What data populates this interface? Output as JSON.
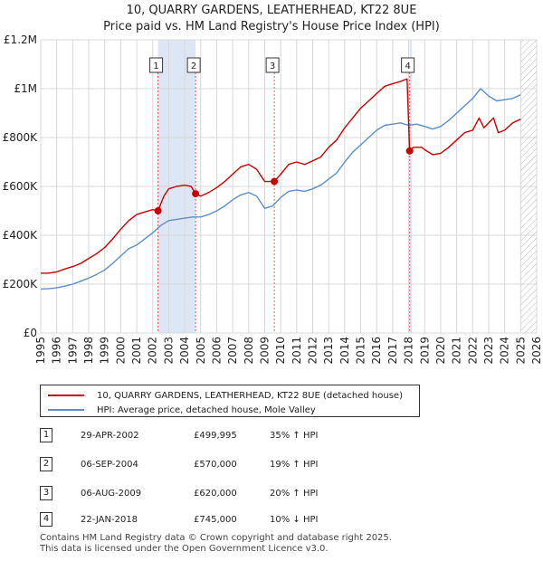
{
  "title_line1": "10, QUARRY GARDENS, LEATHERHEAD, KT22 8UE",
  "title_line2": "Price paid vs. HM Land Registry's House Price Index (HPI)",
  "chart_data": {
    "type": "line",
    "title": "10, QUARRY GARDENS, LEATHERHEAD, KT22 8UE — Price paid vs. HM Land Registry's House Price Index (HPI)",
    "xlabel": "",
    "ylabel": "",
    "xlim": [
      1995,
      2026
    ],
    "ylim": [
      0,
      1200000
    ],
    "grid": true,
    "x_ticks": [
      "1995",
      "1996",
      "1997",
      "1998",
      "1999",
      "2000",
      "2001",
      "2002",
      "2003",
      "2004",
      "2005",
      "2006",
      "2007",
      "2008",
      "2009",
      "2010",
      "2011",
      "2012",
      "2013",
      "2014",
      "2015",
      "2016",
      "2017",
      "2018",
      "2019",
      "2020",
      "2021",
      "2022",
      "2023",
      "2024",
      "2025",
      "2026"
    ],
    "y_ticks": [
      {
        "value": 0,
        "label": "£0"
      },
      {
        "value": 200000,
        "label": "£200K"
      },
      {
        "value": 400000,
        "label": "£400K"
      },
      {
        "value": 600000,
        "label": "£600K"
      },
      {
        "value": 800000,
        "label": "£800K"
      },
      {
        "value": 1000000,
        "label": "£1M"
      },
      {
        "value": 1200000,
        "label": "£1.2M"
      }
    ],
    "shaded_periods": [
      [
        2002.33,
        2004.68
      ],
      [
        2018.06,
        2018.2
      ]
    ],
    "future_hatch_start": 2025.0,
    "series": [
      {
        "name": "10, QUARRY GARDENS, LEATHERHEAD, KT22 8UE (detached house)",
        "color": "#cc0000",
        "x": [
          1995.0,
          1995.5,
          1996.0,
          1996.5,
          1997.0,
          1997.5,
          1998.0,
          1998.5,
          1999.0,
          1999.5,
          2000.0,
          2000.5,
          2001.0,
          2001.5,
          2002.0,
          2002.33,
          2002.7,
          2003.0,
          2003.5,
          2004.0,
          2004.4,
          2004.68,
          2005.0,
          2005.5,
          2006.0,
          2006.5,
          2007.0,
          2007.5,
          2008.0,
          2008.5,
          2009.0,
          2009.6,
          2010.0,
          2010.5,
          2011.0,
          2011.5,
          2012.0,
          2012.5,
          2013.0,
          2013.5,
          2014.0,
          2014.5,
          2015.0,
          2015.5,
          2016.0,
          2016.5,
          2017.0,
          2017.5,
          2017.9,
          2018.06,
          2018.3,
          2018.8,
          2019.0,
          2019.5,
          2020.0,
          2020.5,
          2021.0,
          2021.5,
          2022.0,
          2022.4,
          2022.7,
          2023.0,
          2023.3,
          2023.6,
          2024.0,
          2024.5,
          2025.0
        ],
        "y": [
          245000,
          245000,
          250000,
          262000,
          272000,
          285000,
          305000,
          325000,
          350000,
          385000,
          425000,
          460000,
          485000,
          495000,
          505000,
          499995,
          560000,
          590000,
          600000,
          605000,
          600000,
          570000,
          560000,
          575000,
          595000,
          620000,
          650000,
          680000,
          690000,
          670000,
          620000,
          620000,
          650000,
          690000,
          700000,
          690000,
          705000,
          720000,
          760000,
          790000,
          840000,
          880000,
          920000,
          950000,
          980000,
          1010000,
          1020000,
          1030000,
          1040000,
          745000,
          760000,
          760000,
          750000,
          730000,
          735000,
          760000,
          790000,
          820000,
          830000,
          880000,
          840000,
          860000,
          880000,
          820000,
          830000,
          860000,
          875000
        ]
      },
      {
        "name": "HPI: Average price, detached house, Mole Valley",
        "color": "#5b8fcc",
        "x": [
          1995.0,
          1995.5,
          1996.0,
          1996.5,
          1997.0,
          1997.5,
          1998.0,
          1998.5,
          1999.0,
          1999.5,
          2000.0,
          2000.5,
          2001.0,
          2001.5,
          2002.0,
          2002.5,
          2003.0,
          2003.5,
          2004.0,
          2004.5,
          2005.0,
          2005.5,
          2006.0,
          2006.5,
          2007.0,
          2007.5,
          2008.0,
          2008.5,
          2009.0,
          2009.5,
          2010.0,
          2010.5,
          2011.0,
          2011.5,
          2012.0,
          2012.5,
          2013.0,
          2013.5,
          2014.0,
          2014.5,
          2015.0,
          2015.5,
          2016.0,
          2016.5,
          2017.0,
          2017.5,
          2018.0,
          2018.5,
          2019.0,
          2019.5,
          2020.0,
          2020.5,
          2021.0,
          2021.5,
          2022.0,
          2022.5,
          2023.0,
          2023.5,
          2024.0,
          2024.5,
          2025.0
        ],
        "y": [
          180000,
          181000,
          185000,
          192000,
          200000,
          212000,
          225000,
          240000,
          258000,
          285000,
          315000,
          345000,
          360000,
          385000,
          410000,
          440000,
          460000,
          465000,
          470000,
          475000,
          475000,
          485000,
          500000,
          520000,
          545000,
          565000,
          575000,
          560000,
          510000,
          520000,
          555000,
          580000,
          585000,
          580000,
          590000,
          605000,
          630000,
          655000,
          700000,
          740000,
          770000,
          800000,
          830000,
          850000,
          855000,
          860000,
          850000,
          855000,
          845000,
          835000,
          845000,
          870000,
          900000,
          930000,
          960000,
          1000000,
          970000,
          950000,
          955000,
          960000,
          975000
        ]
      }
    ],
    "sales": [
      {
        "n": "1",
        "x": 2002.33,
        "y": 499995
      },
      {
        "n": "2",
        "x": 2004.68,
        "y": 570000
      },
      {
        "n": "3",
        "x": 2009.6,
        "y": 620000
      },
      {
        "n": "4",
        "x": 2018.06,
        "y": 745000
      }
    ]
  },
  "legend": {
    "property": "10, QUARRY GARDENS, LEATHERHEAD, KT22 8UE (detached house)",
    "hpi": "HPI: Average price, detached house, Mole Valley"
  },
  "sales_table": [
    {
      "n": "1",
      "date": "29-APR-2002",
      "price": "£499,995",
      "hpi": "35% ↑ HPI"
    },
    {
      "n": "2",
      "date": "06-SEP-2004",
      "price": "£570,000",
      "hpi": "19% ↑ HPI"
    },
    {
      "n": "3",
      "date": "06-AUG-2009",
      "price": "£620,000",
      "hpi": "20% ↑ HPI"
    },
    {
      "n": "4",
      "date": "22-JAN-2018",
      "price": "£745,000",
      "hpi": "10% ↓ HPI"
    }
  ],
  "footer": {
    "line1": "Contains HM Land Registry data © Crown copyright and database right 2025.",
    "line2": "This data is licensed under the Open Government Licence v3.0."
  },
  "colors": {
    "property": "#cc0000",
    "hpi": "#5b8fcc",
    "shade": "#dde6f5",
    "grid": "#d8d8d8",
    "marker_line": "#e06060"
  }
}
